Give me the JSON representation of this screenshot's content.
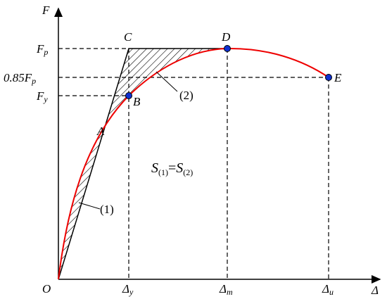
{
  "axes": {
    "y": {
      "label": "F"
    },
    "x": {
      "label": "Δ"
    },
    "origin": "O"
  },
  "y_labels": [
    {
      "main": "F",
      "sub": "p"
    },
    {
      "main": "0.85F",
      "sub": "p"
    },
    {
      "main": "F",
      "sub": "y"
    }
  ],
  "x_labels": [
    {
      "main": "Δ",
      "sub": "y"
    },
    {
      "main": "Δ",
      "sub": "m"
    },
    {
      "main": "Δ",
      "sub": "u"
    }
  ],
  "points": [
    "A",
    "B",
    "C",
    "D",
    "E"
  ],
  "regions": [
    "(1)",
    "(2)"
  ],
  "equation": {
    "left": "S",
    "left_sub": "(1)",
    "eq": "=",
    "right": "S",
    "right_sub": "(2)"
  }
}
